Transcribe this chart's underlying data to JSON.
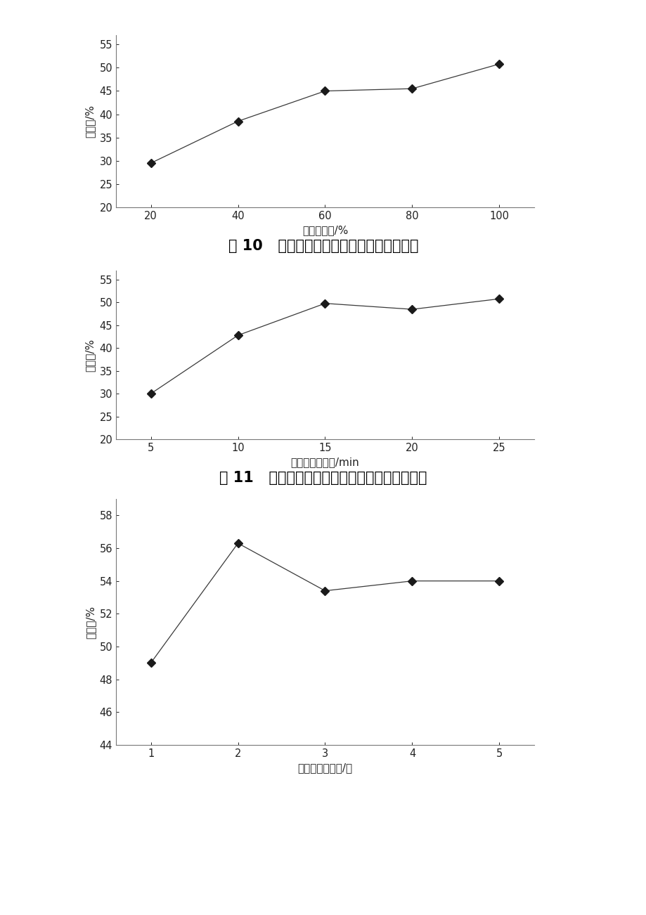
{
  "chart1": {
    "x": [
      20,
      40,
      60,
      80,
      100
    ],
    "y": [
      29.5,
      38.5,
      45.0,
      45.5,
      50.8
    ],
    "xlabel": "淡米水浓度/%",
    "ylabel": "去除率/%",
    "ylim": [
      20,
      57
    ],
    "yticks": [
      20,
      25,
      30,
      35,
      40,
      45,
      50,
      55
    ],
    "xticks": [
      20,
      40,
      60,
      80,
      100
    ],
    "xlim": [
      12,
      108
    ],
    "caption": "图 10   淡米水浓度对毒死蔻残留去除的影响"
  },
  "chart2": {
    "x": [
      5,
      10,
      15,
      20,
      25
    ],
    "y": [
      30.0,
      42.8,
      49.8,
      48.5,
      50.8
    ],
    "xlabel": "淡米水浸泡时间/min",
    "ylabel": "去除率/%",
    "ylim": [
      20,
      57
    ],
    "yticks": [
      20,
      25,
      30,
      35,
      40,
      45,
      50,
      55
    ],
    "xticks": [
      5,
      10,
      15,
      20,
      25
    ],
    "xlim": [
      3,
      27
    ],
    "caption": "图 11   淡米水浸泡时间对毒死蔻残留去除的影响"
  },
  "chart3": {
    "x": [
      1,
      2,
      3,
      4,
      5
    ],
    "y": [
      49.0,
      56.3,
      53.4,
      54.0,
      54.0
    ],
    "xlabel": "淡米水浸泡次数/次",
    "ylabel": "去除率/%",
    "ylim": [
      44,
      59
    ],
    "yticks": [
      44,
      46,
      48,
      50,
      52,
      54,
      56,
      58
    ],
    "xticks": [
      1,
      2,
      3,
      4,
      5
    ],
    "xlim": [
      0.6,
      5.4
    ]
  },
  "line_color": "#3a3a3a",
  "marker": "D",
  "marker_size": 6,
  "marker_facecolor": "#1a1a1a",
  "line_width": 0.9,
  "axis_color": "#777777",
  "tick_color": "#222222",
  "background_color": "#ffffff",
  "caption_fontsize": 15,
  "label_fontsize": 11,
  "tick_fontsize": 10.5
}
